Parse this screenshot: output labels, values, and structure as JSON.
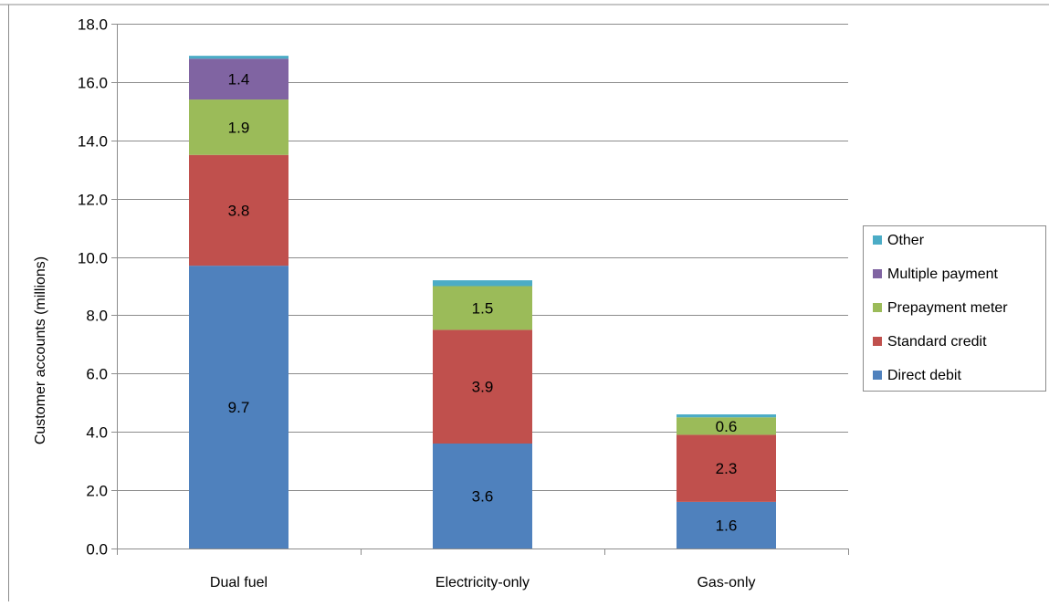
{
  "chart_data": {
    "type": "bar",
    "stacked": true,
    "title": "",
    "xlabel": "",
    "ylabel": "Customer accounts (millions)",
    "ylim": [
      0,
      18
    ],
    "yticks": [
      "0.0",
      "2.0",
      "4.0",
      "6.0",
      "8.0",
      "10.0",
      "12.0",
      "14.0",
      "16.0",
      "18.0"
    ],
    "grid": true,
    "legend_position": "right",
    "categories": [
      "Dual fuel",
      "Electricity-only",
      "Gas-only"
    ],
    "series": [
      {
        "name": "Direct debit",
        "color": "#4F81BD",
        "values": [
          9.7,
          3.6,
          1.6
        ],
        "labels": [
          "9.7",
          "3.6",
          "1.6"
        ]
      },
      {
        "name": "Standard credit",
        "color": "#C0504D",
        "values": [
          3.8,
          3.9,
          2.3
        ],
        "labels": [
          "3.8",
          "3.9",
          "2.3"
        ]
      },
      {
        "name": "Prepayment meter",
        "color": "#9BBB59",
        "values": [
          1.9,
          1.5,
          0.6
        ],
        "labels": [
          "1.9",
          "1.5",
          "0.6"
        ]
      },
      {
        "name": "Multiple payment",
        "color": "#8064A2",
        "values": [
          1.4,
          0.0,
          0.0
        ],
        "labels": [
          "1.4",
          "",
          ""
        ]
      },
      {
        "name": "Other",
        "color": "#4BACC6",
        "values": [
          0.1,
          0.2,
          0.1
        ],
        "labels": [
          "",
          "",
          ""
        ]
      }
    ]
  }
}
